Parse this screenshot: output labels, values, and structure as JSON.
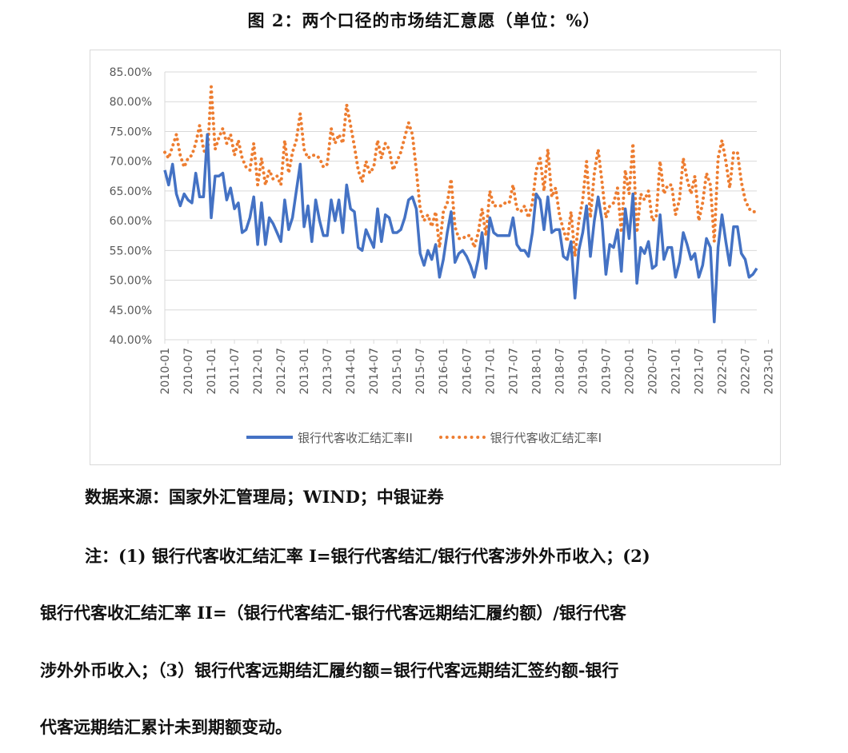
{
  "figure_title": "图 2：两个口径的市场结汇意愿（单位：%）",
  "source_text": "数据来源：国家外汇管理局；WIND；中银证券",
  "notes": {
    "line1": "注：(1) 银行代客收汇结汇率 I=银行代客结汇/银行代客涉外外币收入；(2)",
    "line2": "银行代客收汇结汇率  II=（银行代客结汇-银行代客远期结汇履约额）/银行代客",
    "line3": "涉外外币收入；（3）银行代客远期结汇履约额=银行代客远期结汇签约额-银行",
    "line4": "代客远期结汇累计未到期额变动。"
  },
  "colors": {
    "series_ii": "#4472c4",
    "series_i": "#ed7d31",
    "grid": "#d9d9d9",
    "tick_text": "#595959"
  },
  "chart_data": {
    "type": "line",
    "title": "",
    "xlabel": "",
    "ylabel": "",
    "ylim": [
      40,
      85
    ],
    "y_tick_labels": [
      "85.00%",
      "80.00%",
      "75.00%",
      "70.00%",
      "65.00%",
      "60.00%",
      "55.00%",
      "50.00%",
      "45.00%",
      "40.00%"
    ],
    "x_start": "2010-01",
    "x_end": "2023-01",
    "x_tick_labels": [
      "2010-01",
      "2010-07",
      "2011-01",
      "2011-07",
      "2012-01",
      "2012-07",
      "2013-01",
      "2013-07",
      "2014-01",
      "2014-07",
      "2015-01",
      "2015-07",
      "2016-01",
      "2016-07",
      "2017-01",
      "2017-07",
      "2018-01",
      "2018-07",
      "2019-01",
      "2019-07",
      "2020-01",
      "2020-07",
      "2021-01",
      "2021-07",
      "2022-01",
      "2022-07",
      "2023-01"
    ],
    "grid": "horizontal",
    "legend_position": "bottom",
    "series": [
      {
        "name": "银行代客收汇结汇率II",
        "style": "solid",
        "values": [
          68.5,
          66.0,
          69.5,
          64.5,
          62.5,
          64.5,
          63.5,
          63.0,
          68.0,
          64.0,
          64.0,
          74.5,
          60.5,
          67.5,
          67.5,
          68.0,
          63.5,
          65.5,
          62.0,
          63.0,
          58.0,
          58.5,
          60.5,
          64.0,
          56.0,
          63.0,
          56.0,
          60.5,
          59.5,
          58.0,
          56.5,
          63.5,
          58.5,
          60.5,
          65.0,
          69.5,
          59.0,
          62.5,
          56.5,
          63.5,
          60.0,
          57.5,
          57.5,
          63.5,
          60.0,
          63.5,
          58.0,
          66.0,
          62.0,
          61.5,
          55.5,
          55.0,
          58.5,
          57.0,
          55.5,
          62.0,
          56.5,
          61.0,
          60.5,
          58.0,
          58.0,
          58.5,
          60.5,
          63.5,
          64.0,
          62.0,
          54.5,
          52.5,
          55.0,
          53.5,
          56.0,
          50.5,
          53.5,
          58.0,
          61.5,
          53.0,
          54.5,
          55.0,
          54.0,
          52.5,
          50.5,
          53.5,
          58.0,
          52.0,
          60.5,
          58.0,
          57.5,
          57.5,
          57.5,
          57.5,
          60.5,
          56.0,
          55.0,
          55.0,
          54.0,
          58.0,
          64.5,
          63.5,
          58.5,
          64.0,
          58.0,
          58.5,
          58.5,
          54.0,
          53.5,
          56.5,
          47.0,
          55.0,
          58.0,
          62.5,
          54.0,
          60.0,
          64.0,
          60.0,
          51.0,
          56.0,
          55.5,
          58.5,
          51.5,
          62.0,
          57.0,
          64.5,
          49.5,
          55.5,
          54.5,
          56.5,
          52.0,
          52.5,
          61.0,
          53.5,
          55.5,
          55.5,
          50.5,
          53.0,
          58.0,
          56.0,
          53.5,
          54.5,
          50.5,
          52.5,
          57.0,
          55.5,
          43.0,
          55.5,
          61.0,
          56.5,
          52.5,
          59.0,
          59.0,
          54.5,
          53.5,
          50.5,
          51.0,
          52.0
        ]
      },
      {
        "name": "银行代客收汇结汇率I",
        "style": "dotted",
        "values": [
          71.5,
          70.5,
          72.5,
          74.5,
          71.0,
          69.0,
          70.5,
          71.0,
          73.0,
          76.0,
          72.0,
          70.5,
          82.5,
          72.0,
          74.0,
          75.5,
          73.0,
          74.5,
          71.0,
          73.5,
          70.5,
          69.0,
          68.5,
          73.0,
          66.0,
          70.5,
          66.0,
          68.5,
          67.0,
          67.5,
          66.0,
          73.5,
          68.0,
          71.5,
          73.5,
          78.0,
          72.0,
          70.5,
          71.0,
          71.0,
          70.5,
          69.0,
          69.5,
          75.5,
          73.0,
          74.5,
          73.0,
          79.5,
          76.0,
          72.5,
          68.5,
          66.5,
          70.0,
          68.0,
          69.0,
          73.5,
          70.5,
          73.0,
          72.0,
          68.5,
          70.0,
          71.5,
          74.0,
          76.5,
          74.5,
          68.5,
          62.0,
          60.0,
          61.0,
          59.0,
          61.5,
          55.5,
          61.5,
          63.0,
          67.0,
          59.0,
          57.0,
          57.0,
          57.5,
          57.5,
          55.5,
          58.0,
          62.0,
          57.5,
          65.0,
          62.5,
          62.5,
          62.5,
          63.0,
          63.0,
          66.0,
          62.0,
          61.5,
          62.5,
          60.5,
          63.0,
          68.5,
          70.5,
          65.0,
          72.0,
          64.0,
          65.5,
          61.0,
          58.5,
          56.5,
          61.5,
          54.0,
          60.0,
          63.5,
          70.0,
          60.5,
          68.0,
          72.0,
          66.5,
          60.5,
          62.5,
          63.0,
          65.5,
          58.0,
          68.5,
          64.5,
          73.0,
          58.0,
          64.5,
          63.5,
          65.0,
          60.0,
          60.5,
          70.0,
          64.5,
          66.0,
          66.0,
          61.0,
          63.5,
          70.5,
          67.0,
          64.5,
          67.5,
          60.0,
          63.0,
          68.0,
          66.0,
          56.5,
          70.5,
          73.5,
          70.0,
          65.5,
          71.5,
          71.5,
          66.5,
          63.5,
          62.0,
          61.5,
          61.5
        ]
      }
    ]
  }
}
